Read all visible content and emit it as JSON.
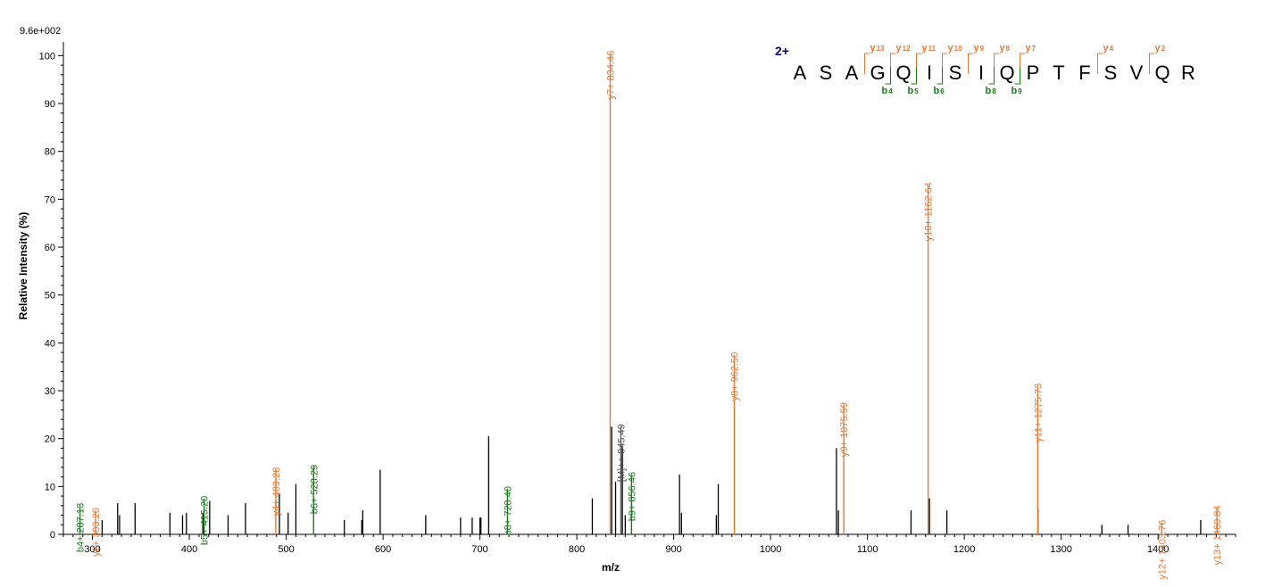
{
  "chart_data": {
    "type": "bar",
    "scale_label": "9.6e+002",
    "xlabel": "m/z",
    "ylabel": "Relative    Intensity (%)",
    "xlim": [
      270,
      1480
    ],
    "ylim": [
      0,
      101
    ],
    "xticks": [
      300,
      400,
      500,
      600,
      700,
      800,
      900,
      1000,
      1100,
      1200,
      1300,
      1400
    ],
    "yticks": [
      0,
      10,
      20,
      30,
      40,
      50,
      60,
      70,
      80,
      90,
      100
    ],
    "colors": {
      "b": "#1a7a1a",
      "y": "#e07b39",
      "precursor": "#555555",
      "unassigned": "#000000",
      "charge": "#00008b"
    },
    "annotated_peaks": [
      {
        "label": "b4+ 287.13",
        "mz": 287.13,
        "intensity": 6.0,
        "ion": "b"
      },
      {
        "label": "y2+ 303.20",
        "mz": 303.2,
        "intensity": 5.0,
        "ion": "y"
      },
      {
        "label": "b5+ 415.20",
        "mz": 415.2,
        "intensity": 7.5,
        "ion": "b"
      },
      {
        "label": "y4+ 489.28",
        "mz": 489.28,
        "intensity": 13.5,
        "ion": "y"
      },
      {
        "label": "b6+ 528.29",
        "mz": 528.29,
        "intensity": 14.0,
        "ion": "b"
      },
      {
        "label": "b8+ 728.40",
        "mz": 728.4,
        "intensity": 9.5,
        "ion": "b"
      },
      {
        "label": "y7+ 834.46",
        "mz": 834.46,
        "intensity": 100.5,
        "ion": "y"
      },
      {
        "label": "[M]++ 845.49",
        "mz": 845.49,
        "intensity": 22.5,
        "ion": "precursor"
      },
      {
        "label": "b9+ 856.46",
        "mz": 856.46,
        "intensity": 12.5,
        "ion": "b"
      },
      {
        "label": "y8+ 962.50",
        "mz": 962.5,
        "intensity": 37.5,
        "ion": "y"
      },
      {
        "label": "y9+ 1075.59",
        "mz": 1075.59,
        "intensity": 27.0,
        "ion": "y"
      },
      {
        "label": "y10+ 1162.64",
        "mz": 1162.64,
        "intensity": 73.0,
        "ion": "y"
      },
      {
        "label": "y11+ 1275.73",
        "mz": 1275.73,
        "intensity": 31.0,
        "ion": "y"
      },
      {
        "label": "y12+ 1403.76",
        "mz": 1403.76,
        "intensity": 2.5,
        "ion": "y"
      },
      {
        "label": "y13+ 1460.84",
        "mz": 1460.84,
        "intensity": 5.5,
        "ion": "y"
      }
    ],
    "unassigned_peaks": [
      [
        310,
        3
      ],
      [
        326,
        6.5
      ],
      [
        328,
        4
      ],
      [
        344,
        6.5
      ],
      [
        380,
        4.5
      ],
      [
        393,
        4
      ],
      [
        397,
        4.5
      ],
      [
        414,
        4.5
      ],
      [
        421,
        7
      ],
      [
        440,
        4
      ],
      [
        458,
        6.5
      ],
      [
        493,
        8.5
      ],
      [
        502,
        4.5
      ],
      [
        510,
        10.5
      ],
      [
        560,
        3
      ],
      [
        578,
        3
      ],
      [
        579,
        5
      ],
      [
        597,
        13.5
      ],
      [
        644,
        4
      ],
      [
        680,
        3.5
      ],
      [
        692,
        3.5
      ],
      [
        700,
        3.5
      ],
      [
        701,
        3.5
      ],
      [
        709,
        20.5
      ],
      [
        816,
        7.5
      ],
      [
        836,
        22.5
      ],
      [
        840,
        11
      ],
      [
        847,
        18.5
      ],
      [
        850,
        4
      ],
      [
        906,
        12.5
      ],
      [
        908,
        4.5
      ],
      [
        944,
        4
      ],
      [
        946,
        10.5
      ],
      [
        1068,
        18
      ],
      [
        1070,
        5
      ],
      [
        1145,
        5
      ],
      [
        1164,
        7.5
      ],
      [
        1182,
        5
      ],
      [
        1276,
        5.5
      ],
      [
        1342,
        2
      ],
      [
        1369,
        2
      ],
      [
        1444,
        3
      ]
    ]
  },
  "peptide": {
    "charge": "2+",
    "residues": [
      "A",
      "S",
      "A",
      "G",
      "Q",
      "I",
      "S",
      "I",
      "Q",
      "P",
      "T",
      "F",
      "S",
      "V",
      "Q",
      "R"
    ],
    "y_ions": [
      {
        "gap": 3,
        "letter": "y",
        "number": "13"
      },
      {
        "gap": 4,
        "letter": "y",
        "number": "12"
      },
      {
        "gap": 5,
        "letter": "y",
        "number": "11"
      },
      {
        "gap": 6,
        "letter": "y",
        "number": "10"
      },
      {
        "gap": 7,
        "letter": "y",
        "number": "9"
      },
      {
        "gap": 8,
        "letter": "y",
        "number": "8"
      },
      {
        "gap": 9,
        "letter": "y",
        "number": "7"
      },
      {
        "gap": 12,
        "letter": "y",
        "number": "4"
      },
      {
        "gap": 14,
        "letter": "y",
        "number": "2"
      }
    ],
    "b_ions": [
      {
        "gap": 4,
        "letter": "b",
        "number": "4"
      },
      {
        "gap": 5,
        "letter": "b",
        "number": "5"
      },
      {
        "gap": 6,
        "letter": "b",
        "number": "6"
      },
      {
        "gap": 8,
        "letter": "b",
        "number": "8"
      },
      {
        "gap": 9,
        "letter": "b",
        "number": "9"
      }
    ]
  }
}
